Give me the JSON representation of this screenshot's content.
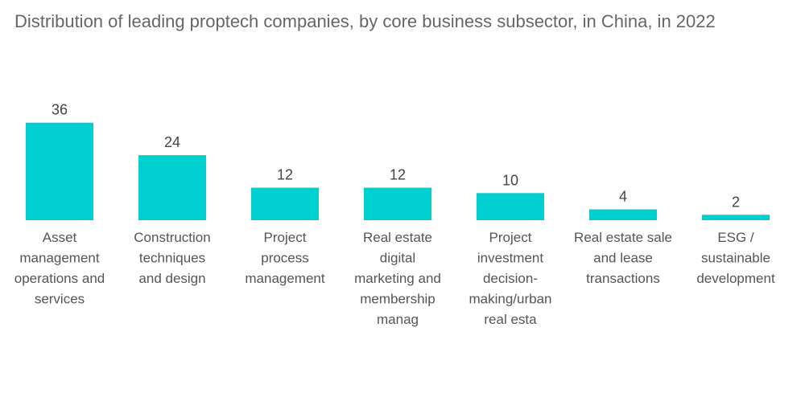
{
  "chart_data": {
    "type": "bar",
    "title": "Distribution of leading proptech companies, by core business subsector, in China, in 2022",
    "xlabel": "",
    "ylabel": "",
    "ylim": [
      0,
      40
    ],
    "grid": false,
    "bar_color": "#00cfcf",
    "categories": [
      "Asset management operations and services",
      "Construction techniques and design",
      "Project process management",
      "Real estate digital marketing and membership manag",
      "Project investment decision-making/urban real esta",
      "Real estate sale and lease transactions",
      "ESG / sustainable development"
    ],
    "category_lines": [
      [
        "Asset",
        "management",
        "operations and",
        "services"
      ],
      [
        "Construction",
        "techniques",
        "and design"
      ],
      [
        "Project",
        "process",
        "management"
      ],
      [
        "Real estate",
        "digital",
        "marketing and",
        "membership",
        "manag"
      ],
      [
        "Project",
        "investment",
        "decision-",
        "making/urban",
        "real esta"
      ],
      [
        "Real estate sale",
        "and lease",
        "transactions"
      ],
      [
        "ESG /",
        "sustainable",
        "development"
      ]
    ],
    "values": [
      36,
      24,
      12,
      12,
      10,
      4,
      2
    ]
  }
}
